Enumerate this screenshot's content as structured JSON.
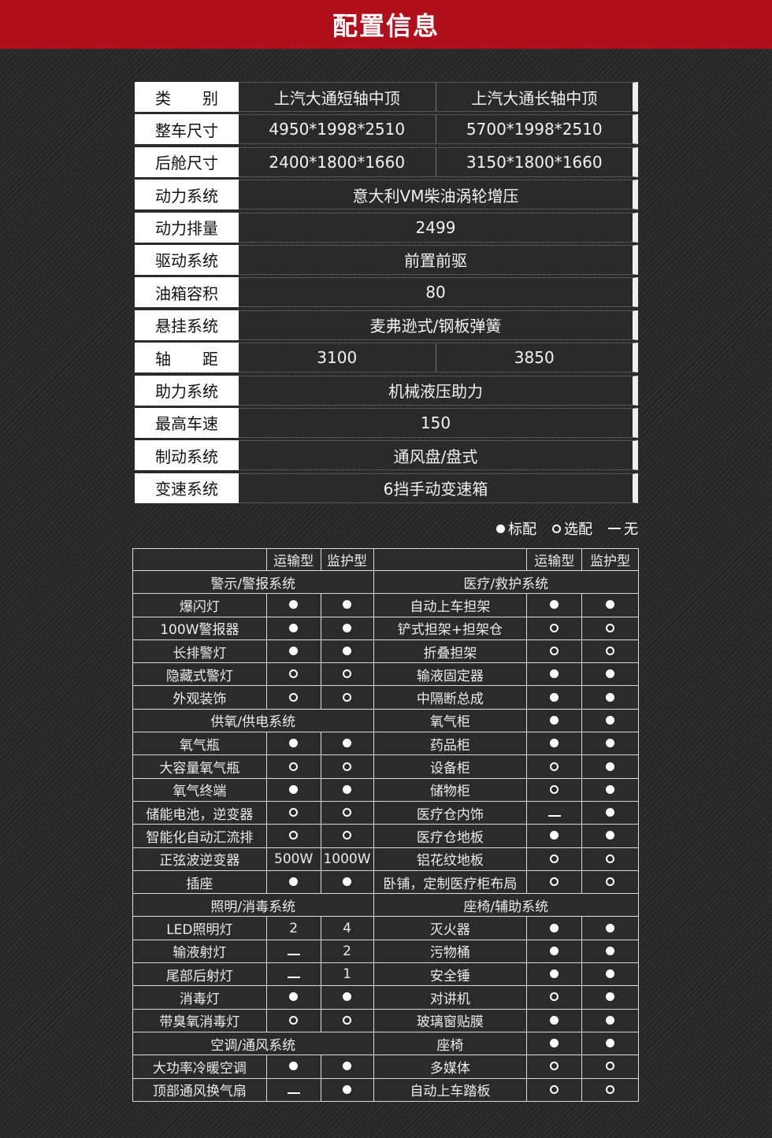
{
  "title": "配置信息",
  "spec_table": [
    {
      "label": "类　　别",
      "values": [
        "上汽大通短轴中顶",
        "上汽大通长轴中顶"
      ]
    },
    {
      "label": "整车尺寸",
      "values": [
        "4950*1998*2510",
        "5700*1998*2510"
      ]
    },
    {
      "label": "后舱尺寸",
      "values": [
        "2400*1800*1660",
        "3150*1800*1660"
      ]
    },
    {
      "label": "动力系统",
      "values": [
        "意大利VM柴油涡轮增压"
      ]
    },
    {
      "label": "动力排量",
      "values": [
        "2499"
      ]
    },
    {
      "label": "驱动系统",
      "values": [
        "前置前驱"
      ]
    },
    {
      "label": "油箱容积",
      "values": [
        "80"
      ]
    },
    {
      "label": "悬挂系统",
      "values": [
        "麦弗逊式/钢板弹簧"
      ]
    },
    {
      "label": "轴　　距",
      "values": [
        "3100",
        "3850"
      ]
    },
    {
      "label": "助力系统",
      "values": [
        "机械液压助力"
      ]
    },
    {
      "label": "最高车速",
      "values": [
        "150"
      ]
    },
    {
      "label": "制动系统",
      "values": [
        "通风盘/盘式"
      ]
    },
    {
      "label": "变速系统",
      "values": [
        "6挡手动变速箱"
      ]
    }
  ],
  "legend": {
    "standard": "标配",
    "optional": "选配",
    "none": "无"
  },
  "feature_table": {
    "columns": [
      "运输型",
      "监护型"
    ],
    "symbol_colors": {
      "text": "#ececec",
      "section": "#d0202f"
    },
    "left": [
      {
        "section": "警示/警报系统"
      },
      {
        "name": "爆闪灯",
        "v": [
          "full",
          "full"
        ]
      },
      {
        "name": "100W警报器",
        "v": [
          "full",
          "full"
        ]
      },
      {
        "name": "长排警灯",
        "v": [
          "full",
          "full"
        ]
      },
      {
        "name": "隐藏式警灯",
        "v": [
          "empty",
          "empty"
        ]
      },
      {
        "name": "外观装饰",
        "v": [
          "empty",
          "empty"
        ]
      },
      {
        "section": "供氧/供电系统"
      },
      {
        "name": "氧气瓶",
        "v": [
          "full",
          "full"
        ]
      },
      {
        "name": "大容量氧气瓶",
        "v": [
          "empty",
          "empty"
        ]
      },
      {
        "name": "氧气终端",
        "v": [
          "full",
          "full"
        ]
      },
      {
        "name": "储能电池，逆变器",
        "v": [
          "empty",
          "empty"
        ]
      },
      {
        "name": "智能化自动汇流排",
        "v": [
          "empty",
          "empty"
        ]
      },
      {
        "name": "正弦波逆变器",
        "v": [
          "500W",
          "1000W"
        ]
      },
      {
        "name": "插座",
        "v": [
          "full",
          "full"
        ]
      },
      {
        "section": "照明/消毒系统"
      },
      {
        "name": "LED照明灯",
        "v": [
          "2",
          "4"
        ]
      },
      {
        "name": "输液射灯",
        "v": [
          "none",
          "2"
        ]
      },
      {
        "name": "尾部后射灯",
        "v": [
          "none",
          "1"
        ]
      },
      {
        "name": "消毒灯",
        "v": [
          "full",
          "full"
        ]
      },
      {
        "name": "带臭氧消毒灯",
        "v": [
          "empty",
          "empty"
        ]
      },
      {
        "section": "空调/通风系统"
      },
      {
        "name": "大功率冷暖空调",
        "v": [
          "full",
          "full"
        ]
      },
      {
        "name": "顶部通风换气扇",
        "v": [
          "none",
          "full"
        ]
      }
    ],
    "right": [
      {
        "section": "医疗/救护系统"
      },
      {
        "name": "自动上车担架",
        "v": [
          "full",
          "full"
        ]
      },
      {
        "name": "铲式担架+担架仓",
        "v": [
          "empty",
          "empty"
        ]
      },
      {
        "name": "折叠担架",
        "v": [
          "empty",
          "empty"
        ]
      },
      {
        "name": "输液固定器",
        "v": [
          "full",
          "full"
        ]
      },
      {
        "name": "中隔断总成",
        "v": [
          "full",
          "full"
        ]
      },
      {
        "name": "氧气柜",
        "v": [
          "full",
          "full"
        ]
      },
      {
        "name": "药品柜",
        "v": [
          "full",
          "full"
        ]
      },
      {
        "name": "设备柜",
        "v": [
          "empty",
          "full"
        ]
      },
      {
        "name": "储物柜",
        "v": [
          "empty",
          "full"
        ]
      },
      {
        "name": "医疗仓内饰",
        "v": [
          "none",
          "full"
        ]
      },
      {
        "name": "医疗仓地板",
        "v": [
          "full",
          "full"
        ]
      },
      {
        "name": "铝花纹地板",
        "v": [
          "empty",
          "empty"
        ]
      },
      {
        "name": "卧铺，定制医疗柜布局",
        "v": [
          "empty",
          "empty"
        ]
      },
      {
        "section": "座椅/辅助系统"
      },
      {
        "name": "灭火器",
        "v": [
          "full",
          "full"
        ]
      },
      {
        "name": "污物桶",
        "v": [
          "full",
          "full"
        ]
      },
      {
        "name": "安全锤",
        "v": [
          "full",
          "full"
        ]
      },
      {
        "name": "对讲机",
        "v": [
          "empty",
          "full"
        ]
      },
      {
        "name": "玻璃窗贴膜",
        "v": [
          "full",
          "full"
        ]
      },
      {
        "name": "座椅",
        "v": [
          "full",
          "full"
        ]
      },
      {
        "name": "多媒体",
        "v": [
          "empty",
          "empty"
        ]
      },
      {
        "name": "自动上车踏板",
        "v": [
          "empty",
          "empty"
        ]
      }
    ]
  }
}
